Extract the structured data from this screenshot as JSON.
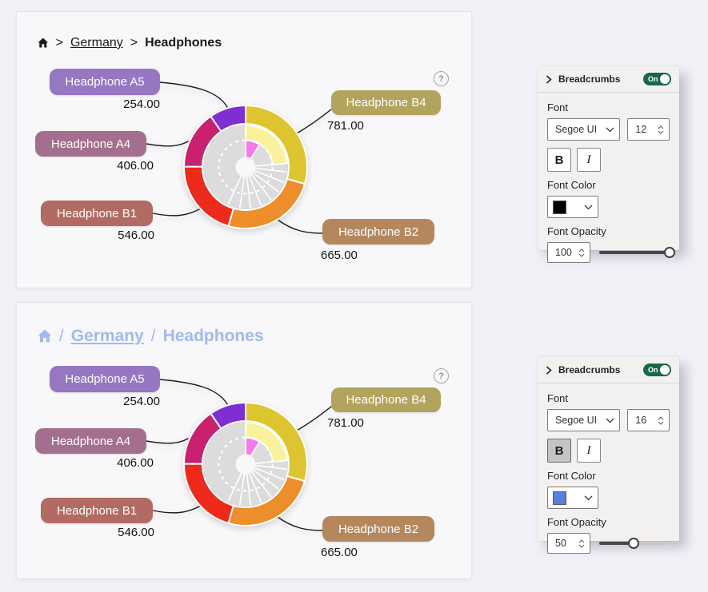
{
  "page": {
    "background": "#f1f2f7"
  },
  "cards": [
    {
      "breadcrumb": {
        "separator": ">",
        "items": [
          {
            "label": "Germany",
            "underlined": true
          },
          {
            "label": "Headphones",
            "underlined": false
          }
        ],
        "font_family": "Segoe UI",
        "font_size": 12,
        "color": "#1b1a19",
        "opacity": 100,
        "bold": "last"
      },
      "help_icon": "?"
    },
    {
      "breadcrumb": {
        "separator": "/",
        "items": [
          {
            "label": "Germany",
            "underlined": true
          },
          {
            "label": "Headphones",
            "underlined": false
          }
        ],
        "font_family": "Segoe UI",
        "font_size": 16,
        "color": "#4a7ce8",
        "opacity": 50,
        "bold": "all"
      },
      "help_icon": "?"
    }
  ],
  "chart_data": {
    "type": "sunburst",
    "rings": 3,
    "slices": [
      {
        "label": "Headphone B4",
        "value": 781.0,
        "display_value": "781.00",
        "slice_color": "#ddc52f",
        "badge_color": "#b2a45c"
      },
      {
        "label": "Headphone B2",
        "value": 665.0,
        "display_value": "665.00",
        "slice_color": "#ec8e2a",
        "badge_color": "#b5875d"
      },
      {
        "label": "Headphone B1",
        "value": 546.0,
        "display_value": "546.00",
        "slice_color": "#ee2a1b",
        "badge_color": "#b26b62"
      },
      {
        "label": "Headphone A4",
        "value": 406.0,
        "display_value": "406.00",
        "slice_color": "#c9206f",
        "badge_color": "#a46f8e"
      },
      {
        "label": "Headphone A5",
        "value": 254.0,
        "display_value": "254.00",
        "slice_color": "#7e2ed2",
        "badge_color": "#9577c2"
      }
    ],
    "middle_ring_highlight": {
      "color": "#f9f29b",
      "from_deg": 0,
      "to_deg": 85
    },
    "inner_ring_highlight": {
      "color": "#f47ce8",
      "from_deg": 0,
      "to_deg": 32
    },
    "muted_color": "#dcdcdc"
  },
  "panels": [
    {
      "title": "Breadcrumbs",
      "toggle_label": "On",
      "toggle_on": true,
      "font_label": "Font",
      "font_family": "Segoe UI",
      "font_size": "12",
      "bold_label": "B",
      "italic_label": "I",
      "bold_active": false,
      "italic_active": false,
      "font_color_label": "Font Color",
      "font_color": "#000000",
      "font_opacity_label": "Font Opacity",
      "opacity_value": "100"
    },
    {
      "title": "Breadcrumbs",
      "toggle_label": "On",
      "toggle_on": true,
      "font_label": "Font",
      "font_family": "Segoe UI",
      "font_size": "16",
      "bold_label": "B",
      "italic_label": "I",
      "bold_active": true,
      "italic_active": false,
      "font_color_label": "Font Color",
      "font_color": "#5580e0",
      "font_opacity_label": "Font Opacity",
      "opacity_value": "50"
    }
  ]
}
